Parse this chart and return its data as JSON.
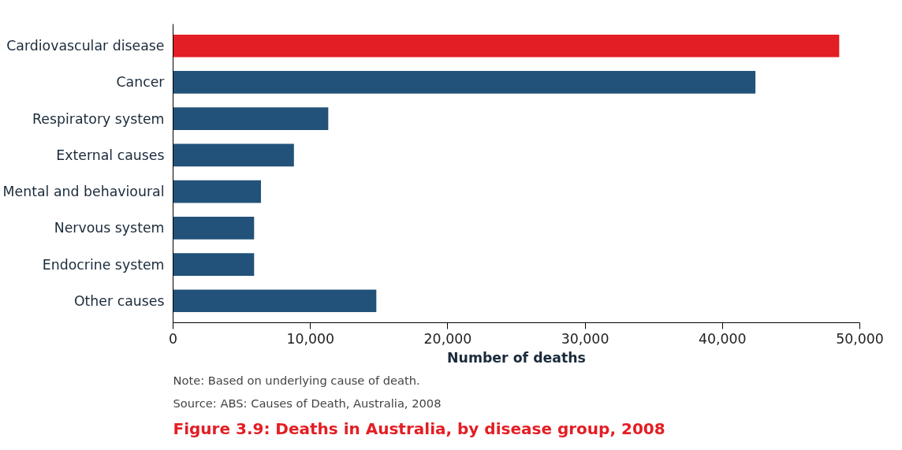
{
  "chart_data": {
    "type": "bar",
    "orientation": "horizontal",
    "title": "Figure 3.9: Deaths in Australia, by disease group, 2008",
    "categories": [
      "Cardiovascular disease",
      "Cancer",
      "Respiratory system",
      "External causes",
      "Mental and behavioural",
      "Nervous system",
      "Endocrine system",
      "Other causes"
    ],
    "values": [
      48500,
      42400,
      11300,
      8800,
      6400,
      5900,
      5900,
      14800
    ],
    "colors": [
      "#e31e24",
      "#22527a",
      "#22527a",
      "#22527a",
      "#22527a",
      "#22527a",
      "#22527a",
      "#22527a"
    ],
    "xlim": [
      0,
      50000
    ],
    "xticks": [
      0,
      {
        "value": 10000,
        "label": "10,000"
      },
      {
        "value": 20000,
        "label": "20,000"
      },
      {
        "value": 30000,
        "label": "30,000"
      },
      {
        "value": 40000,
        "label": "40,000"
      },
      {
        "value": 50000,
        "label": "50,000"
      }
    ],
    "xlabel": "Number of deaths",
    "grid": false,
    "annotations": [
      "Note: Based on underlying cause of death.",
      "Source: ABS: Causes of Death, Australia, 2008"
    ]
  }
}
